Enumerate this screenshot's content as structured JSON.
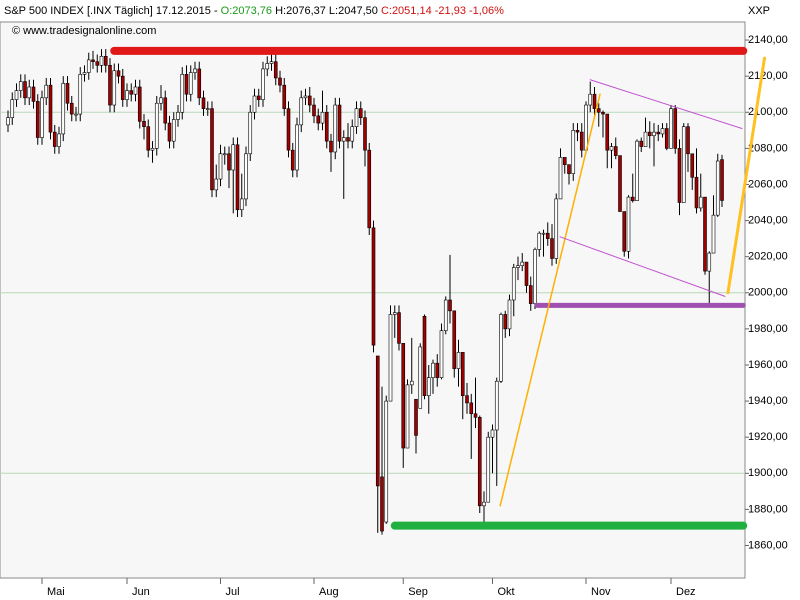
{
  "chart_data": {
    "type": "candlestick",
    "header": [
      "S&P 500 INDEX [.INX  Täglich] 17.12.2015 -",
      "O:2073,76",
      "H:2076,37 L:2047,50",
      "C:2051,14 -21,93 -1,06%"
    ],
    "header_colors": [
      "#000000",
      "#1a9a1a",
      "#000000",
      "#d01010"
    ],
    "copyright": "© www.tradesignalonline.com",
    "symbol": "XXP",
    "up_color": "#ffffff",
    "down_color": "#a00000",
    "ylim": [
      1842,
      2150
    ],
    "yticks": [
      {
        "value": 1860,
        "label": "1860,00"
      },
      {
        "value": 1880,
        "label": "1880,00"
      },
      {
        "value": 1900,
        "label": "1900,00"
      },
      {
        "value": 1920,
        "label": "1920,00"
      },
      {
        "value": 1940,
        "label": "1940,00"
      },
      {
        "value": 1960,
        "label": "1960,00"
      },
      {
        "value": 1980,
        "label": "1980,00"
      },
      {
        "value": 2000,
        "label": "2000,00"
      },
      {
        "value": 2020,
        "label": "2020,00"
      },
      {
        "value": 2040,
        "label": "2040,00"
      },
      {
        "value": 2060,
        "label": "2060,00"
      },
      {
        "value": 2080,
        "label": "2080,00"
      },
      {
        "value": 2100,
        "label": "2100,00"
      },
      {
        "value": 2120,
        "label": "2120,00"
      },
      {
        "value": 2140,
        "label": "2140,00"
      }
    ],
    "grid_lines": [
      1900,
      2000,
      2100
    ],
    "categories": [
      null,
      null,
      null,
      null,
      null,
      null,
      null,
      null,
      "Mai",
      null,
      null,
      null,
      null,
      null,
      null,
      null,
      null,
      null,
      null,
      null,
      null,
      null,
      null,
      null,
      null,
      null,
      null,
      null,
      "Jun",
      null,
      null,
      null,
      null,
      null,
      null,
      null,
      null,
      null,
      null,
      null,
      null,
      null,
      null,
      null,
      null,
      null,
      null,
      null,
      null,
      null,
      "Jul",
      null,
      null,
      null,
      null,
      null,
      null,
      null,
      null,
      null,
      null,
      null,
      null,
      null,
      null,
      null,
      null,
      null,
      null,
      null,
      null,
      null,
      "Aug",
      null,
      null,
      null,
      null,
      null,
      null,
      null,
      null,
      null,
      null,
      null,
      null,
      null,
      null,
      null,
      null,
      null,
      null,
      null,
      null,
      "Sep",
      null,
      null,
      null,
      null,
      null,
      null,
      null,
      null,
      null,
      null,
      null,
      null,
      null,
      null,
      null,
      null,
      null,
      null,
      null,
      null,
      "Okt",
      null,
      null,
      null,
      null,
      null,
      null,
      null,
      null,
      null,
      null,
      null,
      null,
      null,
      null,
      null,
      null,
      null,
      null,
      null,
      null,
      null,
      "Nov",
      null,
      null,
      null,
      null,
      null,
      null,
      null,
      null,
      null,
      null,
      null,
      null,
      null,
      null,
      null,
      null,
      null,
      null,
      null,
      "Dez",
      null,
      null,
      null,
      null,
      null,
      null,
      null,
      null,
      null,
      null,
      null,
      null
    ],
    "open": [
      2093,
      2097,
      2107,
      2112,
      2117,
      2108,
      2114,
      2106,
      2086,
      2108,
      2115,
      2089,
      2081,
      2088,
      2116,
      2105,
      2099,
      2099,
      2121,
      2122,
      2129,
      2128,
      2126,
      2131,
      2126,
      2104,
      2123,
      2120,
      2107,
      2112,
      2110,
      2114,
      2095,
      2092,
      2079,
      2080,
      2105,
      2108,
      2094,
      2084,
      2096,
      2100,
      2121,
      2110,
      2122,
      2124,
      2108,
      2102,
      2102,
      2057,
      2063,
      2077,
      2077,
      2068,
      2082,
      2046,
      2052,
      2077,
      2100,
      2109,
      2107,
      2124,
      2127,
      2128,
      2119,
      2115,
      2102,
      2079,
      2068,
      2093,
      2108,
      2109,
      2104,
      2098,
      2094,
      2100,
      2084,
      2078,
      2104,
      2084,
      2086,
      2084,
      2092,
      2102,
      2097,
      2079,
      2036,
      1965,
      1898,
      1873,
      1940,
      1988,
      1989,
      1972,
      1914,
      1949,
      1941,
      1936,
      1987,
      1943,
      1953,
      1961,
      1953,
      1979,
      1996,
      1990,
      1958,
      1967,
      1943,
      1939,
      1933,
      1931,
      1882,
      1884,
      1920,
      1924,
      1951,
      1988,
      1980,
      1996,
      2014,
      2015,
      2017,
      2004,
      1994,
      2024,
      2033,
      2033,
      2030,
      2019,
      2052,
      2075,
      2071,
      2066,
      2090,
      2089,
      2079,
      2104,
      2110,
      2102,
      2100,
      2099,
      2079,
      2081,
      2076,
      2045,
      2023,
      2053,
      2051,
      2084,
      2081,
      2089,
      2087,
      2089,
      2088,
      2091,
      2080,
      2102,
      2080,
      2050,
      2092,
      2077,
      2064,
      2047,
      2053,
      2012,
      2022,
      2043,
      2073.76
    ],
    "high": [
      2101,
      2111,
      2116,
      2121,
      2121,
      2118,
      2118,
      2110,
      2112,
      2119,
      2119,
      2093,
      2092,
      2120,
      2120,
      2109,
      2103,
      2125,
      2126,
      2133,
      2134,
      2132,
      2135,
      2135,
      2130,
      2127,
      2127,
      2124,
      2116,
      2116,
      2118,
      2118,
      2099,
      2096,
      2084,
      2109,
      2115,
      2112,
      2098,
      2100,
      2104,
      2125,
      2126,
      2126,
      2128,
      2128,
      2112,
      2106,
      2106,
      2071,
      2082,
      2081,
      2081,
      2086,
      2086,
      2066,
      2081,
      2104,
      2113,
      2113,
      2128,
      2131,
      2133,
      2132,
      2123,
      2119,
      2106,
      2083,
      2097,
      2112,
      2113,
      2114,
      2108,
      2102,
      2112,
      2104,
      2088,
      2108,
      2108,
      2090,
      2094,
      2096,
      2106,
      2106,
      2101,
      2083,
      2040,
      1965,
      1948,
      1943,
      1993,
      1993,
      1993,
      1972,
      1952,
      1975,
      1941,
      1972,
      1988,
      1960,
      1963,
      1966,
      1983,
      1998,
      2021,
      1990,
      1974,
      1967,
      1950,
      1944,
      1953,
      1932,
      1890,
      1923,
      1927,
      1953,
      1989,
      1990,
      1999,
      2016,
      2020,
      2022,
      2017,
      2009,
      2025,
      2034,
      2035,
      2039,
      2038,
      2055,
      2080,
      2075,
      2071,
      2094,
      2094,
      2094,
      2106,
      2117,
      2114,
      2105,
      2101,
      2099,
      2083,
      2086,
      2076,
      2045,
      2054,
      2066,
      2085,
      2086,
      2097,
      2095,
      2094,
      2093,
      2094,
      2094,
      2104,
      2104,
      2085,
      2094,
      2094,
      2077,
      2080,
      2066,
      2053,
      2023,
      2054,
      2077,
      2076.37
    ],
    "low": [
      2089,
      2093,
      2103,
      2108,
      2104,
      2104,
      2102,
      2082,
      2082,
      2104,
      2085,
      2077,
      2077,
      2084,
      2101,
      2095,
      2095,
      2095,
      2117,
      2118,
      2124,
      2122,
      2122,
      2122,
      2100,
      2100,
      2116,
      2103,
      2103,
      2106,
      2106,
      2091,
      2085,
      2075,
      2072,
      2076,
      2101,
      2090,
      2080,
      2080,
      2092,
      2096,
      2106,
      2106,
      2118,
      2104,
      2098,
      2098,
      2053,
      2053,
      2059,
      2071,
      2058,
      2044,
      2042,
      2042,
      2048,
      2073,
      2096,
      2103,
      2103,
      2120,
      2123,
      2115,
      2111,
      2098,
      2075,
      2064,
      2064,
      2089,
      2104,
      2100,
      2094,
      2090,
      2090,
      2080,
      2067,
      2074,
      2080,
      2052,
      2080,
      2080,
      2088,
      2093,
      2070,
      2032,
      1967,
      1867,
      1866,
      1872,
      1940,
      1975,
      1968,
      1903,
      1917,
      1944,
      1911,
      1936,
      1941,
      1933,
      1944,
      1948,
      1952,
      1977,
      1983,
      1953,
      1948,
      1930,
      1933,
      1908,
      1925,
      1878,
      1872,
      1884,
      1900,
      1893,
      1950,
      1975,
      1976,
      1987,
      2007,
      2012,
      2000,
      1990,
      1991,
      2020,
      2020,
      2026,
      2015,
      2016,
      2052,
      2066,
      2060,
      2062,
      2084,
      2075,
      2077,
      2100,
      2098,
      2092,
      2086,
      2069,
      2069,
      2074,
      2045,
      2020,
      2019,
      2050,
      2051,
      2078,
      2082,
      2080,
      2070,
      2084,
      2086,
      2079,
      2080,
      2077,
      2043,
      2050,
      2067,
      2057,
      2044,
      2045,
      2010,
      1994,
      2022,
      2042,
      2047.5
    ],
    "close": [
      2097,
      2107,
      2112,
      2117,
      2108,
      2114,
      2106,
      2086,
      2108,
      2115,
      2089,
      2081,
      2088,
      2116,
      2105,
      2099,
      2099,
      2121,
      2122,
      2129,
      2128,
      2126,
      2131,
      2126,
      2104,
      2123,
      2120,
      2107,
      2112,
      2110,
      2114,
      2095,
      2092,
      2079,
      2080,
      2105,
      2108,
      2094,
      2084,
      2096,
      2100,
      2121,
      2110,
      2122,
      2124,
      2108,
      2102,
      2102,
      2057,
      2063,
      2077,
      2077,
      2068,
      2082,
      2046,
      2052,
      2077,
      2100,
      2109,
      2107,
      2124,
      2127,
      2128,
      2119,
      2115,
      2102,
      2079,
      2068,
      2093,
      2108,
      2109,
      2104,
      2098,
      2094,
      2100,
      2084,
      2078,
      2104,
      2084,
      2086,
      2084,
      2092,
      2102,
      2097,
      2079,
      2036,
      1971,
      1893,
      1868,
      1940,
      1988,
      1989,
      1972,
      1914,
      1949,
      1951,
      1921,
      1970,
      1943,
      1953,
      1961,
      1953,
      1979,
      1996,
      1990,
      1958,
      1967,
      1943,
      1939,
      1933,
      1931,
      1882,
      1884,
      1920,
      1924,
      1951,
      1988,
      1980,
      1996,
      2014,
      2015,
      2017,
      2004,
      1994,
      2024,
      2033,
      2033,
      2030,
      2019,
      2052,
      2075,
      2071,
      2066,
      2090,
      2089,
      2079,
      2104,
      2110,
      2102,
      2100,
      2099,
      2079,
      2081,
      2076,
      2045,
      2023,
      2053,
      2051,
      2084,
      2081,
      2089,
      2087,
      2089,
      2088,
      2091,
      2080,
      2102,
      2080,
      2050,
      2092,
      2077,
      2064,
      2047,
      2053,
      2012,
      2022,
      2043,
      2073,
      2051.14
    ],
    "lines": [
      {
        "color": "#e01818",
        "width": 8,
        "x0": 25,
        "y0": 2134,
        "x1": 173,
        "y1": 2134
      },
      {
        "color": "#20b040",
        "width": 8,
        "x0": 91,
        "y0": 1871,
        "x1": 173,
        "y1": 1871
      },
      {
        "color": "#a050b0",
        "width": 5,
        "x0": 124.5,
        "y0": 1993,
        "x1": 173,
        "y1": 1993
      },
      {
        "color": "#ffb000",
        "width": 1.5,
        "x0": 115.8,
        "y0": 1882,
        "x1": 139.3,
        "y1": 2110
      },
      {
        "color": "#ffc020",
        "width": 3,
        "x0": 169.4,
        "y0": 2000,
        "x1": 178,
        "y1": 2130
      },
      {
        "color": "#c050d0",
        "width": 1,
        "x0": 137,
        "y0": 2118,
        "x1": 172.7,
        "y1": 2091
      },
      {
        "color": "#c050d0",
        "width": 1,
        "x0": 129.9,
        "y0": 2031,
        "x1": 168.7,
        "y1": 1998
      }
    ]
  }
}
